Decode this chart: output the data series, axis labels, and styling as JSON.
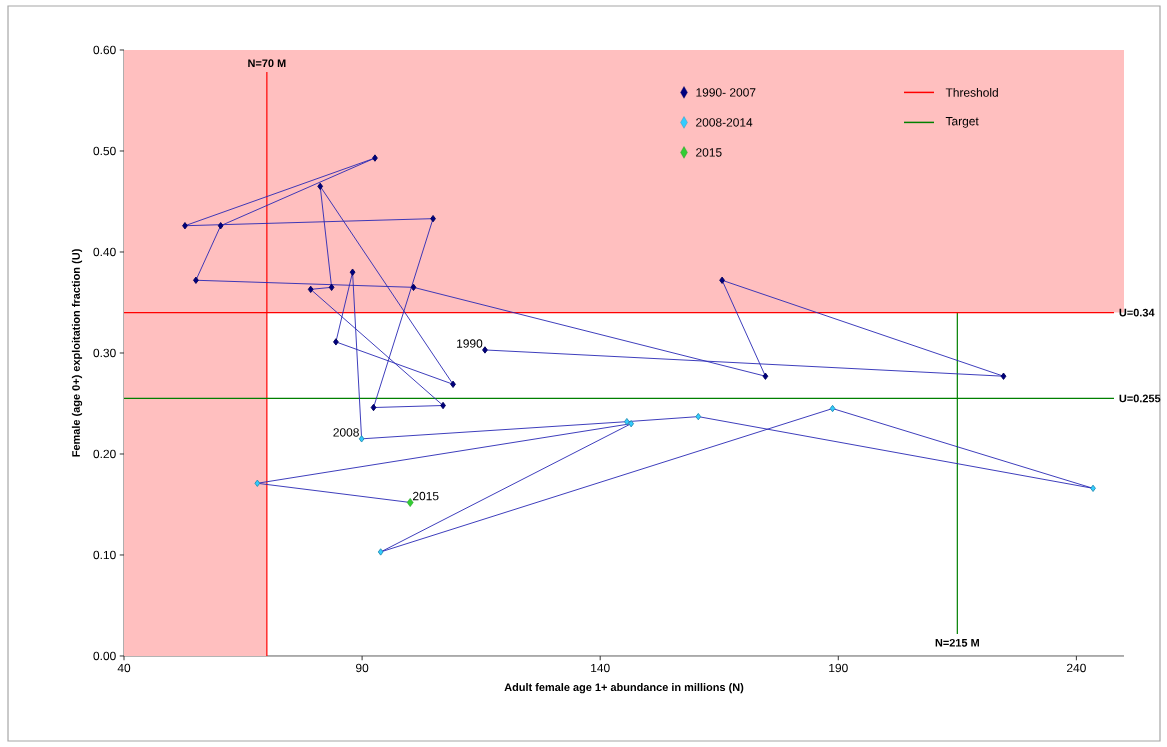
{
  "chart_data": {
    "type": "line",
    "xlabel": "Adult female age 1+ abundance  in millions (N)",
    "ylabel": "Female (age 0+) exploitation fraction (U)",
    "xlim": [
      40,
      250
    ],
    "xticks": [
      40,
      90,
      140,
      190,
      240
    ],
    "ylim": [
      0,
      0.6
    ],
    "yticks": [
      {
        "value": 0,
        "label": "0.00"
      },
      {
        "value": 0.1,
        "label": "0.10"
      },
      {
        "value": 0.2,
        "label": "0.20"
      },
      {
        "value": 0.3,
        "label": "0.30"
      },
      {
        "value": 0.4,
        "label": "0.40"
      },
      {
        "value": 0.5,
        "label": "0.50"
      },
      {
        "value": 0.6,
        "label": "0.60"
      }
    ],
    "marker": "diamond",
    "legend": "top right",
    "series": [
      {
        "name": "1990- 2007",
        "color": "#00007f",
        "x": [
          115.8,
          224.7,
          165.6,
          174.7,
          100.8,
          55.1,
          60.3,
          92.7,
          52.8,
          104.9,
          92.4,
          107.0,
          79.2,
          83.6,
          81.2,
          109.1,
          84.5,
          88.0
        ],
        "values": [
          0.303,
          0.277,
          0.372,
          0.277,
          0.365,
          0.372,
          0.426,
          0.493,
          0.426,
          0.433,
          0.246,
          0.248,
          0.363,
          0.365,
          0.465,
          0.269,
          0.311,
          0.38
        ]
      },
      {
        "name": "2008-2014",
        "color": "#33ccff",
        "x": [
          89.9,
          145.6,
          160.6,
          243.5,
          188.8,
          93.9,
          146.5,
          68.0
        ],
        "values": [
          0.215,
          0.232,
          0.237,
          0.166,
          0.245,
          0.103,
          0.23,
          0.171
        ]
      },
      {
        "name": "2015",
        "type": "scatter",
        "color": "#33cc33",
        "x": [
          100.1
        ],
        "values": [
          0.152
        ]
      }
    ],
    "ref_lines": [
      {
        "axis": "x",
        "value": 70,
        "label": "N=70 M",
        "color": "#ff0000"
      },
      {
        "axis": "x",
        "value": 215,
        "label": "N=215 M",
        "color": "#008000"
      },
      {
        "axis": "y",
        "value": 0.34,
        "label": "U=0.34",
        "color": "#ff0000"
      },
      {
        "axis": "y",
        "value": 0.255,
        "label": "U=0.255",
        "color": "#008000"
      }
    ],
    "bands": [
      {
        "axis": "x",
        "from": 40,
        "to": 70,
        "color": "#ffbfbf"
      },
      {
        "axis": "y",
        "from": 0.34,
        "to": 0.6,
        "color": "#ffbfbf"
      }
    ],
    "annotations": [
      {
        "text": "1990",
        "x": 115.8,
        "y": 0.303
      },
      {
        "text": "2008",
        "x": 89.9,
        "y": 0.215
      },
      {
        "text": "2015",
        "x": 100.1,
        "y": 0.152
      },
      "Threshold",
      "Target"
    ]
  }
}
